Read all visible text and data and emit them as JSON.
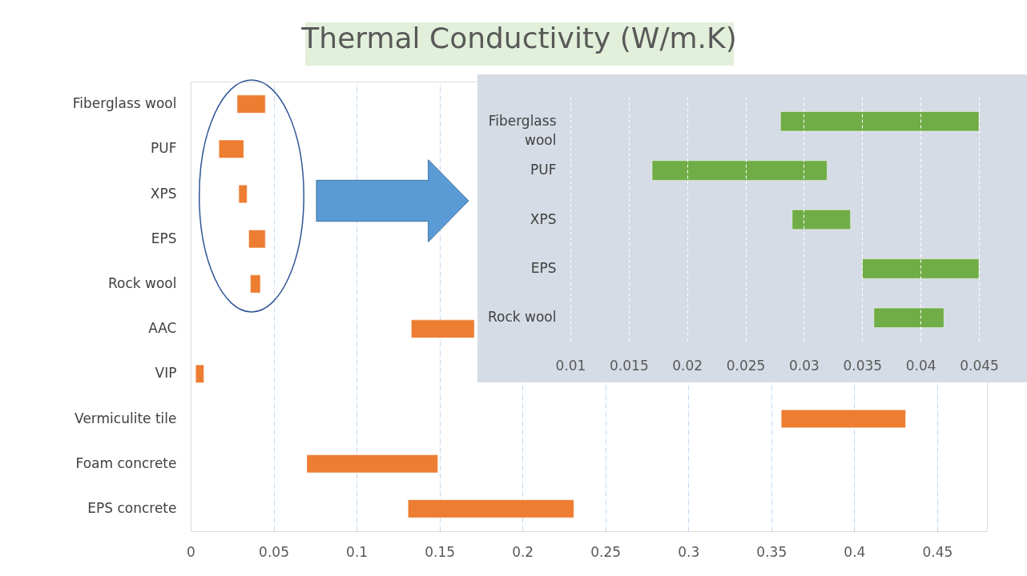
{
  "chart_data": [
    {
      "type": "bar",
      "orientation": "horizontal",
      "title": "Thermal Conductivity (W/m.K)",
      "categories": [
        "Fiberglass wool",
        "PUF",
        "XPS",
        "EPS",
        "Rock wool",
        "AAC",
        "VIP",
        "Vermiculite tile",
        "Foam concrete",
        "EPS concrete"
      ],
      "base": [
        0.028,
        0.017,
        0.029,
        0.035,
        0.036,
        0.133,
        0.003,
        0.356,
        0.07,
        0.131
      ],
      "values": [
        0.017,
        0.015,
        0.005,
        0.01,
        0.006,
        0.038,
        0.005,
        0.075,
        0.079,
        0.1
      ],
      "color": "#ed7d31",
      "xlim": [
        0,
        0.48
      ],
      "xticks": [
        0,
        0.05,
        0.1,
        0.15,
        0.2,
        0.25,
        0.3,
        0.35,
        0.4,
        0.45
      ],
      "grid": "x"
    },
    {
      "type": "bar",
      "orientation": "horizontal",
      "categories": [
        "Fiberglass wool",
        "PUF",
        "XPS",
        "EPS",
        "Rock wool"
      ],
      "base": [
        0.028,
        0.017,
        0.029,
        0.035,
        0.036
      ],
      "values": [
        0.017,
        0.015,
        0.005,
        0.01,
        0.006
      ],
      "color": "#70ad47",
      "xlim": [
        0.01,
        0.045
      ],
      "xticks": [
        0.01,
        0.015,
        0.02,
        0.025,
        0.03,
        0.035,
        0.04,
        0.045
      ],
      "grid": "x"
    }
  ]
}
